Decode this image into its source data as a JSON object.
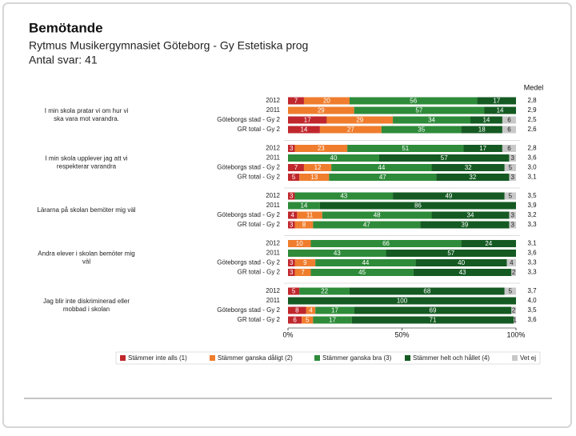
{
  "chart_data": {
    "type": "stacked-bar-horizontal",
    "title": "Bemötande",
    "subtitle": "Rytmus Musikergymnasiet Göteborg - Gy Estetiska prog",
    "note": "Antal svar: 41",
    "medel_header": "Medel",
    "xlim": [
      0,
      100
    ],
    "xticks": [
      {
        "value": 0,
        "label": "0%"
      },
      {
        "value": 50,
        "label": "50%"
      },
      {
        "value": 100,
        "label": "100%"
      }
    ],
    "series": [
      {
        "name": "Stämmer inte alls (1)",
        "color": "#c0272d"
      },
      {
        "name": "Stämmer ganska dåligt (2)",
        "color": "#ef7d2d"
      },
      {
        "name": "Stämmer ganska bra (3)",
        "color": "#2e8b3a"
      },
      {
        "name": "Stämmer helt och hållet (4)",
        "color": "#145a22"
      },
      {
        "name": "Vet ej",
        "color": "#c8c8c8"
      }
    ],
    "groups": [
      {
        "label": "I min skola pratar vi om hur vi ska vara mot varandra.",
        "categories": [
          "2012",
          "2011",
          "Göteborgs stad - Gy 2",
          "GR total - Gy 2"
        ],
        "values": [
          [
            7,
            20,
            56,
            17,
            0
          ],
          [
            0,
            29,
            57,
            14,
            0
          ],
          [
            17,
            29,
            34,
            14,
            6
          ],
          [
            14,
            27,
            35,
            18,
            6
          ]
        ],
        "medel": [
          2.8,
          2.9,
          2.5,
          2.6
        ],
        "medel_labels": [
          "2,8",
          "2,9",
          "2,5",
          "2,6"
        ]
      },
      {
        "label": "I min skola upplever jag att vi respekterar varandra",
        "categories": [
          "2012",
          "2011",
          "Göteborgs stad - Gy 2",
          "GR total - Gy 2"
        ],
        "values": [
          [
            3,
            23,
            51,
            17,
            6
          ],
          [
            0,
            0,
            40,
            57,
            3
          ],
          [
            7,
            12,
            44,
            32,
            5
          ],
          [
            5,
            13,
            47,
            32,
            3
          ]
        ],
        "medel": [
          2.8,
          3.6,
          3.0,
          3.1
        ],
        "medel_labels": [
          "2,8",
          "3,6",
          "3,0",
          "3,1"
        ]
      },
      {
        "label": "Lärarna på skolan bemöter mig väl",
        "categories": [
          "2012",
          "2011",
          "Göteborgs stad - Gy 2",
          "GR total - Gy 2"
        ],
        "values": [
          [
            3,
            0,
            43,
            49,
            5
          ],
          [
            0,
            0,
            14,
            86,
            0
          ],
          [
            4,
            11,
            48,
            34,
            3
          ],
          [
            3,
            8,
            47,
            39,
            3
          ]
        ],
        "medel": [
          3.5,
          3.9,
          3.2,
          3.3
        ],
        "medel_labels": [
          "3,5",
          "3,9",
          "3,2",
          "3,3"
        ]
      },
      {
        "label": "Andra elever i skolan bemöter mig väl",
        "categories": [
          "2012",
          "2011",
          "Göteborgs stad - Gy 2",
          "GR total - Gy 2"
        ],
        "values": [
          [
            0,
            10,
            66,
            24,
            0
          ],
          [
            0,
            0,
            43,
            57,
            0
          ],
          [
            3,
            9,
            44,
            40,
            4
          ],
          [
            3,
            7,
            45,
            43,
            2
          ]
        ],
        "medel": [
          3.1,
          3.6,
          3.3,
          3.3
        ],
        "medel_labels": [
          "3,1",
          "3,6",
          "3,3",
          "3,3"
        ]
      },
      {
        "label": "Jag blir inte diskriminerad eller mobbad i skolan",
        "categories": [
          "2012",
          "2011",
          "Göteborgs stad - Gy 2",
          "GR total - Gy 2"
        ],
        "values": [
          [
            5,
            0,
            22,
            68,
            5
          ],
          [
            0,
            0,
            0,
            100,
            0
          ],
          [
            8,
            4,
            17,
            69,
            2
          ],
          [
            6,
            5,
            17,
            71,
            1
          ]
        ],
        "medel": [
          3.7,
          4.0,
          3.5,
          3.6
        ],
        "medel_labels": [
          "3,7",
          "4,0",
          "3,5",
          "3,6"
        ]
      }
    ]
  }
}
